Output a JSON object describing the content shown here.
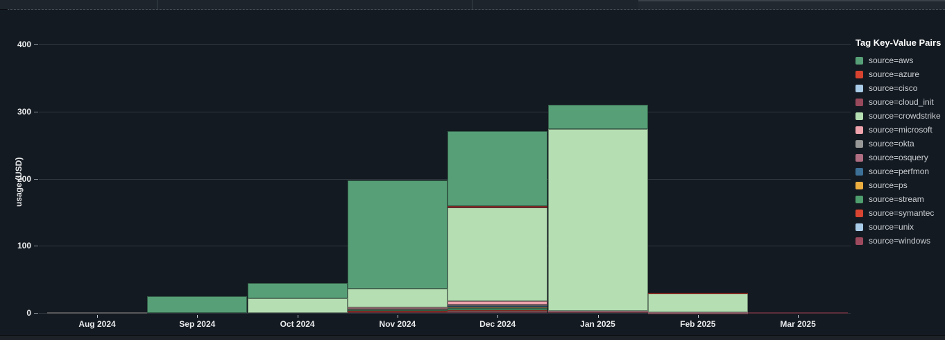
{
  "panel": {
    "background": "#141a21"
  },
  "chart_data": {
    "type": "bar",
    "stacked": true,
    "title": "",
    "xlabel": "",
    "ylabel": "usage (USD)",
    "ylim": [
      0,
      425
    ],
    "yticks": [
      0,
      100,
      200,
      300,
      400
    ],
    "grid": true,
    "legend_title": "Tag Key-Value Pairs",
    "legend_position": "right",
    "categories": [
      "Aug 2024",
      "Sep 2024",
      "Oct 2024",
      "Nov 2024",
      "Dec 2024",
      "Jan 2025",
      "Feb 2025",
      "Mar 2025"
    ],
    "series": [
      {
        "name": "source=aws",
        "color": "#57a077",
        "values": [
          0,
          25,
          22,
          161,
          111,
          36,
          0,
          0
        ]
      },
      {
        "name": "source=azure",
        "color": "#d8432f",
        "values": [
          0,
          0,
          0,
          0,
          0.4,
          0,
          0.6,
          0
        ]
      },
      {
        "name": "source=cisco",
        "color": "#a9cce9",
        "values": [
          0,
          0,
          0,
          0,
          0.3,
          0,
          0,
          0
        ]
      },
      {
        "name": "source=cloud_init",
        "color": "#98495c",
        "values": [
          0,
          0,
          0,
          0,
          0.3,
          0,
          0,
          0
        ]
      },
      {
        "name": "source=crowdstrike",
        "color": "#b5dfb2",
        "values": [
          0,
          0,
          22,
          28,
          141,
          271,
          27.5,
          0
        ]
      },
      {
        "name": "source=microsoft",
        "color": "#efa3ad",
        "values": [
          0,
          0,
          0,
          0.5,
          5,
          0.8,
          0.6,
          0
        ]
      },
      {
        "name": "source=okta",
        "color": "#989898",
        "values": [
          0.8,
          0,
          0,
          0,
          0.3,
          0,
          0,
          0
        ]
      },
      {
        "name": "source=osquery",
        "color": "#b06e82",
        "values": [
          0,
          0,
          0,
          0.4,
          2,
          0,
          0,
          0
        ]
      },
      {
        "name": "source=perfmon",
        "color": "#3c7097",
        "values": [
          0,
          0,
          0,
          0,
          0.3,
          0,
          0,
          0
        ]
      },
      {
        "name": "source=ps",
        "color": "#ecae3f",
        "values": [
          0,
          0,
          0,
          1.5,
          2,
          0,
          0.5,
          0
        ]
      },
      {
        "name": "source=stream",
        "color": "#4f9e6d",
        "values": [
          0,
          0,
          0,
          2.5,
          4,
          0,
          0,
          0
        ]
      },
      {
        "name": "source=symantec",
        "color": "#da4532",
        "values": [
          0,
          0,
          0,
          1,
          0.4,
          0,
          0,
          0
        ]
      },
      {
        "name": "source=unix",
        "color": "#a9cce9",
        "values": [
          0,
          0,
          0,
          0,
          0.3,
          0,
          0,
          0
        ]
      },
      {
        "name": "source=windows",
        "color": "#9e4a5e",
        "values": [
          0,
          0,
          0,
          2,
          3,
          2,
          0.4,
          1.2
        ]
      }
    ]
  }
}
